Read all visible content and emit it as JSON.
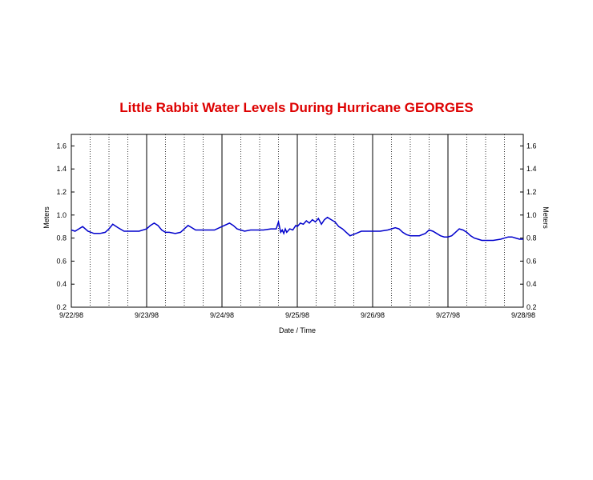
{
  "chart_data": {
    "type": "line",
    "title": "Little Rabbit Water Levels During Hurricane GEORGES",
    "xlabel": "Date / Time",
    "ylabel_left": "Meters",
    "ylabel_right": "Meters",
    "xlim_days": [
      0,
      6
    ],
    "x_tick_labels": [
      "9/22/98",
      "9/23/98",
      "9/24/98",
      "9/25/98",
      "9/26/98",
      "9/27/98",
      "9/28/98"
    ],
    "ylim": [
      0.2,
      1.7
    ],
    "y_ticks": [
      0.2,
      0.4,
      0.6,
      0.8,
      1.0,
      1.2,
      1.4,
      1.6
    ],
    "y_tick_labels": [
      "0.2",
      "0.4",
      "0.6",
      "0.8",
      "1.0",
      "1.2",
      "1.4",
      "1.6"
    ],
    "grid": "vertical: solid at day boundaries, dotted every 6 hours",
    "line_color": "#0000cc",
    "title_color": "#dd0000",
    "series": [
      {
        "x_days": [
          0.0,
          0.05,
          0.1,
          0.15,
          0.22,
          0.3,
          0.38,
          0.45,
          0.5,
          0.55,
          0.62,
          0.7,
          0.75,
          0.8,
          0.9,
          1.0,
          1.05,
          1.1,
          1.15,
          1.2,
          1.25,
          1.3,
          1.38,
          1.45,
          1.5,
          1.55,
          1.6,
          1.65,
          1.7,
          1.8,
          1.9,
          2.0,
          2.1,
          2.15,
          2.2,
          2.25,
          2.3,
          2.38,
          2.45,
          2.55,
          2.65,
          2.72,
          2.75,
          2.78,
          2.8,
          2.82,
          2.84,
          2.86,
          2.9,
          2.94,
          2.98,
          3.0,
          3.04,
          3.08,
          3.12,
          3.16,
          3.2,
          3.24,
          3.28,
          3.32,
          3.36,
          3.4,
          3.45,
          3.5,
          3.55,
          3.6,
          3.65,
          3.7,
          3.78,
          3.85,
          3.92,
          4.0,
          4.1,
          4.2,
          4.25,
          4.3,
          4.35,
          4.4,
          4.45,
          4.5,
          4.55,
          4.62,
          4.7,
          4.75,
          4.8,
          4.85,
          4.9,
          4.95,
          5.0,
          5.05,
          5.1,
          5.15,
          5.2,
          5.25,
          5.3,
          5.35,
          5.4,
          5.45,
          5.5,
          5.55,
          5.6,
          5.7,
          5.8,
          5.85,
          5.9,
          5.95,
          6.0
        ],
        "values": [
          0.87,
          0.86,
          0.88,
          0.9,
          0.86,
          0.84,
          0.84,
          0.85,
          0.88,
          0.92,
          0.89,
          0.86,
          0.86,
          0.86,
          0.86,
          0.88,
          0.91,
          0.93,
          0.91,
          0.87,
          0.85,
          0.85,
          0.84,
          0.85,
          0.88,
          0.91,
          0.89,
          0.87,
          0.87,
          0.87,
          0.87,
          0.9,
          0.93,
          0.91,
          0.88,
          0.87,
          0.86,
          0.87,
          0.87,
          0.87,
          0.88,
          0.88,
          0.94,
          0.85,
          0.87,
          0.84,
          0.88,
          0.85,
          0.88,
          0.87,
          0.91,
          0.9,
          0.93,
          0.92,
          0.95,
          0.93,
          0.96,
          0.94,
          0.97,
          0.92,
          0.96,
          0.98,
          0.96,
          0.94,
          0.9,
          0.88,
          0.85,
          0.82,
          0.84,
          0.86,
          0.86,
          0.86,
          0.86,
          0.87,
          0.88,
          0.89,
          0.88,
          0.85,
          0.83,
          0.82,
          0.82,
          0.82,
          0.84,
          0.87,
          0.86,
          0.84,
          0.82,
          0.81,
          0.81,
          0.82,
          0.85,
          0.88,
          0.87,
          0.85,
          0.82,
          0.8,
          0.79,
          0.78,
          0.78,
          0.78,
          0.78,
          0.79,
          0.81,
          0.81,
          0.8,
          0.79,
          0.79
        ]
      }
    ]
  }
}
